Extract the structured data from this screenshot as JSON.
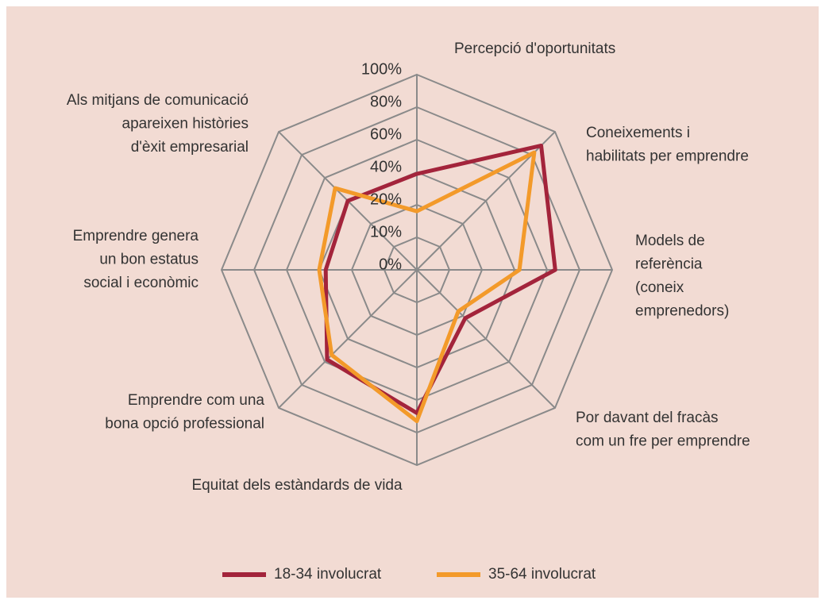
{
  "chart_data": {
    "type": "radar",
    "categories": [
      [
        "Percepció d'oportunitats"
      ],
      [
        "Coneixements i",
        "habilitats per emprendre"
      ],
      [
        "Models de",
        "referència",
        "(coneix",
        "emprenedors)"
      ],
      [
        "Por davant del fracàs",
        "com un fre per emprendre"
      ],
      [
        "Equitat dels estàndards de vida"
      ],
      [
        "Emprendre com una",
        "bona opció professional"
      ],
      [
        "Emprendre genera",
        "un bon estatus",
        "social i econòmic"
      ],
      [
        "Als mitjans de comunicació",
        "apareixen històries",
        "d'èxit empresarial"
      ]
    ],
    "series": [
      {
        "name": "18-34 involucrat",
        "color": "#a3243b",
        "values": [
          39,
          88,
          65,
          22,
          68,
          58,
          36,
          40
        ]
      },
      {
        "name": "35-64 involucrat",
        "color": "#f39a2a",
        "values": [
          18,
          82,
          43,
          18,
          73,
          54,
          40,
          51
        ]
      }
    ],
    "rlim": [
      0,
      100
    ],
    "rticks": [
      {
        "value": 0,
        "label": "0%"
      },
      {
        "value": 10,
        "label": "10%"
      },
      {
        "value": 20,
        "label": "20%"
      },
      {
        "value": 40,
        "label": "40%"
      },
      {
        "value": 60,
        "label": "60%"
      },
      {
        "value": 80,
        "label": "80%"
      },
      {
        "value": 100,
        "label": "100%"
      }
    ],
    "grid": true,
    "legend": "bottom"
  }
}
